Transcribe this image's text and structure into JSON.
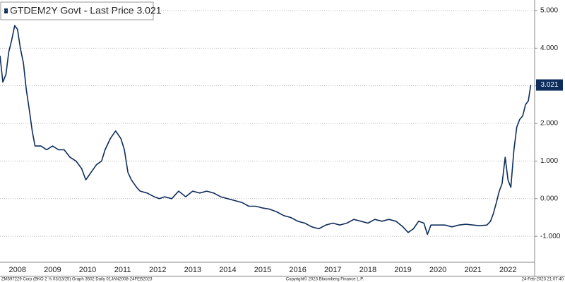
{
  "chart_data": {
    "type": "line",
    "title": "GTDEM2Y Govt - Last Price 3.021",
    "last_price": 3.021,
    "color": "#0d2d5c",
    "grid": true,
    "x": [
      2008.0,
      2008.08,
      2008.17,
      2008.25,
      2008.33,
      2008.42,
      2008.5,
      2008.58,
      2008.67,
      2008.75,
      2008.83,
      2008.92,
      2009.0,
      2009.17,
      2009.33,
      2009.5,
      2009.67,
      2009.83,
      2010.0,
      2010.17,
      2010.33,
      2010.45,
      2010.6,
      2010.75,
      2010.9,
      2011.0,
      2011.15,
      2011.3,
      2011.45,
      2011.55,
      2011.65,
      2011.75,
      2011.9,
      2012.0,
      2012.2,
      2012.4,
      2012.55,
      2012.7,
      2012.9,
      2013.1,
      2013.3,
      2013.5,
      2013.7,
      2013.9,
      2014.1,
      2014.3,
      2014.5,
      2014.7,
      2014.9,
      2015.1,
      2015.3,
      2015.5,
      2015.7,
      2015.9,
      2016.1,
      2016.3,
      2016.5,
      2016.7,
      2016.9,
      2017.1,
      2017.3,
      2017.5,
      2017.7,
      2017.9,
      2018.1,
      2018.3,
      2018.5,
      2018.7,
      2018.9,
      2019.1,
      2019.3,
      2019.5,
      2019.65,
      2019.8,
      2019.95,
      2020.1,
      2020.2,
      2020.3,
      2020.5,
      2020.7,
      2020.9,
      2021.1,
      2021.3,
      2021.5,
      2021.7,
      2021.9,
      2022.0,
      2022.08,
      2022.17,
      2022.25,
      2022.33,
      2022.42,
      2022.5,
      2022.58,
      2022.67,
      2022.75,
      2022.83,
      2022.92,
      2023.0,
      2023.08,
      2023.15
    ],
    "values": [
      3.8,
      3.1,
      3.3,
      3.9,
      4.2,
      4.6,
      4.5,
      4.0,
      3.6,
      2.9,
      2.4,
      1.8,
      1.4,
      1.4,
      1.3,
      1.4,
      1.3,
      1.3,
      1.1,
      1.0,
      0.8,
      0.5,
      0.7,
      0.9,
      1.0,
      1.3,
      1.6,
      1.8,
      1.6,
      1.3,
      0.7,
      0.5,
      0.3,
      0.2,
      0.15,
      0.05,
      0.0,
      0.05,
      0.0,
      0.2,
      0.05,
      0.2,
      0.15,
      0.2,
      0.15,
      0.05,
      0.0,
      -0.05,
      -0.1,
      -0.2,
      -0.2,
      -0.25,
      -0.28,
      -0.35,
      -0.45,
      -0.5,
      -0.6,
      -0.65,
      -0.75,
      -0.8,
      -0.7,
      -0.65,
      -0.7,
      -0.65,
      -0.55,
      -0.6,
      -0.65,
      -0.55,
      -0.6,
      -0.55,
      -0.6,
      -0.75,
      -0.9,
      -0.8,
      -0.6,
      -0.65,
      -0.95,
      -0.7,
      -0.7,
      -0.7,
      -0.75,
      -0.7,
      -0.68,
      -0.7,
      -0.72,
      -0.7,
      -0.6,
      -0.4,
      -0.1,
      0.2,
      0.4,
      1.1,
      0.5,
      0.3,
      1.3,
      1.9,
      2.1,
      2.2,
      2.5,
      2.6,
      3.021
    ],
    "xlim": [
      2008.0,
      2023.26
    ],
    "ylim": [
      -1.69,
      5.28
    ],
    "yticks": [
      {
        "value": 5,
        "label": "5.000"
      },
      {
        "value": 4,
        "label": "4.000"
      },
      {
        "value": 3,
        "label": "3.000"
      },
      {
        "value": 2,
        "label": "2.000"
      },
      {
        "value": 1,
        "label": "1.000"
      },
      {
        "value": 0,
        "label": "0.000"
      },
      {
        "value": -1,
        "label": "-1.000"
      }
    ],
    "xticks": [
      {
        "value": 2008.5,
        "label": "2008"
      },
      {
        "value": 2009.5,
        "label": "2009"
      },
      {
        "value": 2010.5,
        "label": "2010"
      },
      {
        "value": 2011.5,
        "label": "2011"
      },
      {
        "value": 2012.5,
        "label": "2012"
      },
      {
        "value": 2013.5,
        "label": "2013"
      },
      {
        "value": 2014.5,
        "label": "2014"
      },
      {
        "value": 2015.5,
        "label": "2015"
      },
      {
        "value": 2016.5,
        "label": "2016"
      },
      {
        "value": 2017.5,
        "label": "2017"
      },
      {
        "value": 2018.5,
        "label": "2018"
      },
      {
        "value": 2019.5,
        "label": "2019"
      },
      {
        "value": 2020.5,
        "label": "2020"
      },
      {
        "value": 2021.5,
        "label": "2021"
      },
      {
        "value": 2022.5,
        "label": "2022"
      }
    ],
    "footer_left": "ZM597229 Corp (BKO 2 ⅛ 03/13/25) Graph 3502  Daily 01JAN2008-24FEB2023",
    "footer_center": "Copyright© 2023 Bloomberg Finance L.P.",
    "footer_right": "24-Feb-2023 21:07:40"
  }
}
